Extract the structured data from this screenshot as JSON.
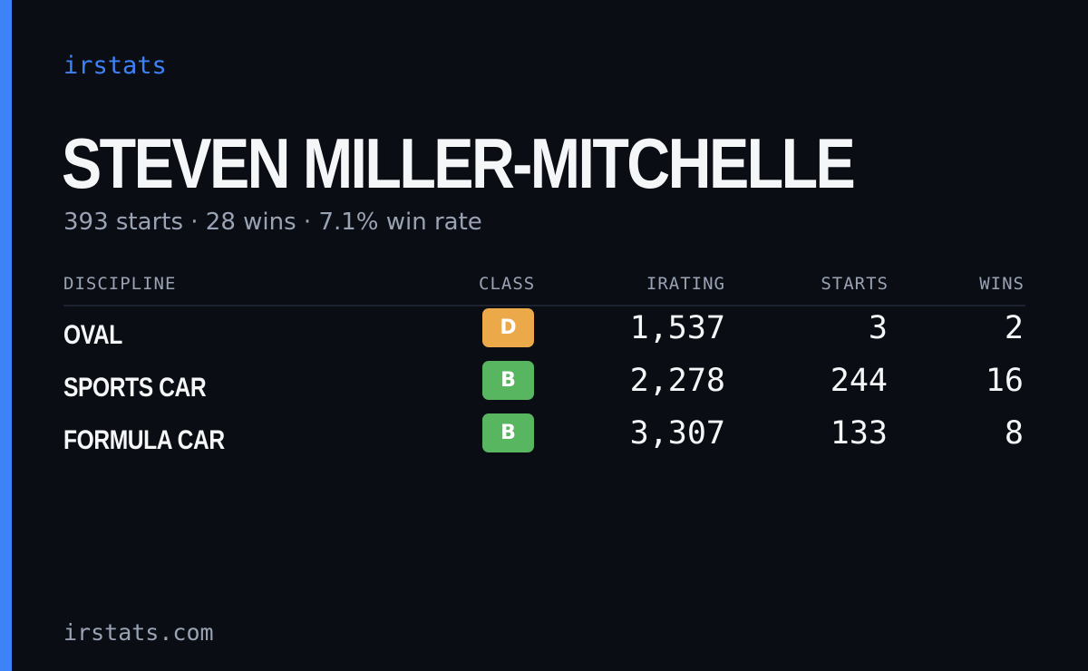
{
  "brand": "irstats",
  "driver_name": "STEVEN MILLER-MITCHELLE",
  "summary": "393 starts · 28 wins · 7.1% win rate",
  "table": {
    "headers": {
      "discipline": "DISCIPLINE",
      "class": "CLASS",
      "irating": "IRATING",
      "starts": "STARTS",
      "wins": "WINS"
    },
    "rows": [
      {
        "discipline": "OVAL",
        "class": "D",
        "class_color": "#eca94a",
        "irating": "1,537",
        "starts": "3",
        "wins": "2"
      },
      {
        "discipline": "SPORTS CAR",
        "class": "B",
        "class_color": "#58b560",
        "irating": "2,278",
        "starts": "244",
        "wins": "16"
      },
      {
        "discipline": "FORMULA CAR",
        "class": "B",
        "class_color": "#58b560",
        "irating": "3,307",
        "starts": "133",
        "wins": "8"
      }
    ]
  },
  "footer": "irstats.com",
  "colors": {
    "accent": "#3e82f7",
    "background": "#0a0d14",
    "text": "#f5f6f8",
    "muted": "#9aa3b4"
  }
}
